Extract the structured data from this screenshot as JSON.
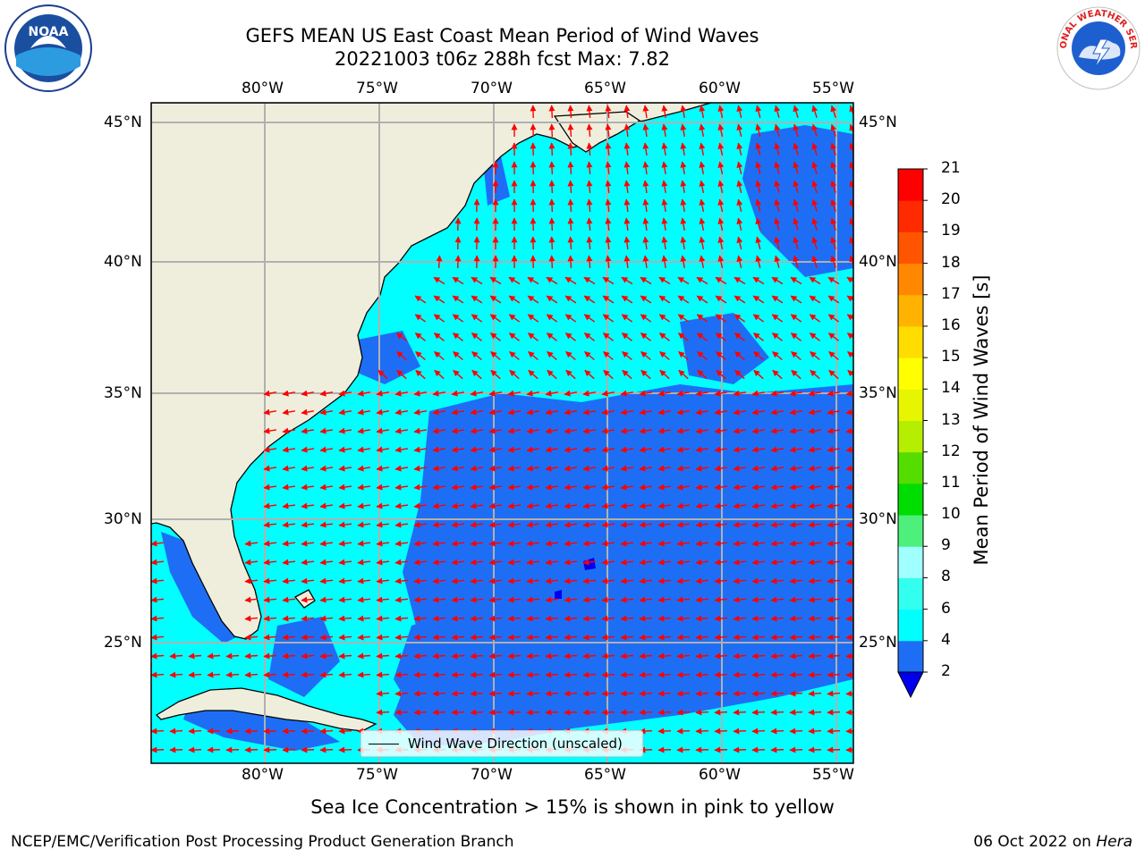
{
  "title_line1": "GEFS MEAN US East Coast Mean Period of Wind Waves",
  "title_line2": "20221003 t06z 288h fcst   Max: 7.82",
  "lon_ticks": [
    "80°W",
    "75°W",
    "70°W",
    "65°W",
    "60°W",
    "55°W"
  ],
  "lat_ticks": [
    "45°N",
    "40°N",
    "35°N",
    "30°N",
    "25°N"
  ],
  "legend_label": "Wind Wave Direction (unscaled)",
  "colorbar": {
    "label": "Mean Period of Wind Waves [s]",
    "ticks": [
      "2",
      "4",
      "6",
      "8",
      "9",
      "10",
      "11",
      "12",
      "13",
      "14",
      "15",
      "16",
      "17",
      "18",
      "19",
      "20",
      "21"
    ],
    "colors": [
      "#1e6ef5",
      "#00ffff",
      "#33ffee",
      "#a0ffff",
      "#4cf07a",
      "#00dd00",
      "#55dd00",
      "#b5ee00",
      "#e8f500",
      "#ffff00",
      "#ffdd00",
      "#ffb300",
      "#ff8800",
      "#ff5500",
      "#ff2a00",
      "#ff0000"
    ],
    "under_color": "#0000ee"
  },
  "note": "Sea Ice Concentration > 15% is shown in pink to yellow",
  "footer_left": "NCEP/EMC/Verification Post Processing Product Generation Branch",
  "footer_date": "06 Oct 2022 on",
  "footer_host": "Hera",
  "logos": {
    "left": "NOAA",
    "right": "NATIONAL WEATHER SERVICE"
  },
  "colors": {
    "land": "#efeedc",
    "ocean_main": "#00ffff",
    "ocean_low": "#1e6ef5",
    "arrow": "#ff0000",
    "grid": "#b0b0b0"
  }
}
